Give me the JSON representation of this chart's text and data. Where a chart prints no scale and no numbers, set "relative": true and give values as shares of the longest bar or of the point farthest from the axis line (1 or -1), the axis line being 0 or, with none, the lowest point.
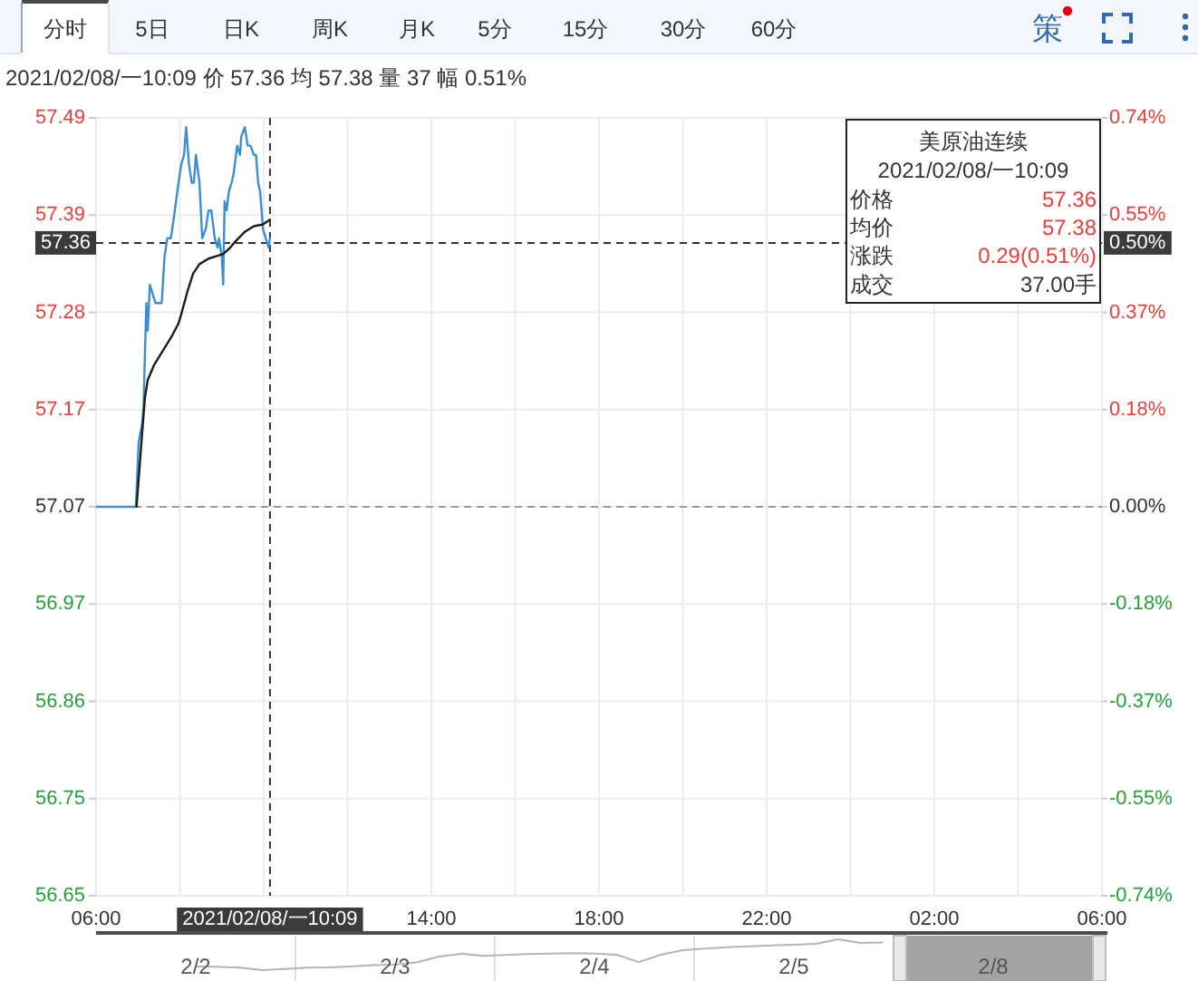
{
  "chart_data": [
    {
      "type": "line",
      "title": "美原油连续",
      "subtitle": "2021/02/08/一10:09 价 57.36 均 57.38 量 37 幅 0.51%",
      "series": [
        {
          "color": "#3a8fd3",
          "x": [
            "2021-02-08T06:00",
            "2021-02-08T06:57",
            "2021-02-08T07:01",
            "2021-02-08T07:06",
            "2021-02-08T07:08",
            "2021-02-08T07:12",
            "2021-02-08T07:14",
            "2021-02-08T07:17",
            "2021-02-08T07:21",
            "2021-02-08T07:25",
            "2021-02-08T07:34",
            "2021-02-08T07:38",
            "2021-02-08T07:42",
            "2021-02-08T07:47",
            "2021-02-08T07:51",
            "2021-02-08T07:58",
            "2021-02-08T08:02",
            "2021-02-08T08:06",
            "2021-02-08T08:09",
            "2021-02-08T08:13",
            "2021-02-08T08:17",
            "2021-02-08T08:20",
            "2021-02-08T08:23",
            "2021-02-08T08:28",
            "2021-02-08T08:32",
            "2021-02-08T08:37",
            "2021-02-08T08:41",
            "2021-02-08T08:45",
            "2021-02-08T08:50",
            "2021-02-08T08:54",
            "2021-02-08T08:56",
            "2021-02-08T09:00",
            "2021-02-08T09:02",
            "2021-02-08T09:04",
            "2021-02-08T09:07",
            "2021-02-08T09:10",
            "2021-02-08T09:14",
            "2021-02-08T09:17",
            "2021-02-08T09:22",
            "2021-02-08T09:26",
            "2021-02-08T09:28",
            "2021-02-08T09:33",
            "2021-02-08T09:37",
            "2021-02-08T09:41",
            "2021-02-08T09:46",
            "2021-02-08T09:49",
            "2021-02-08T09:52",
            "2021-02-08T09:55",
            "2021-02-08T09:59",
            "2021-02-08T10:03",
            "2021-02-08T10:07",
            "2021-02-08T10:09"
          ],
          "values": [
            57.07,
            57.07,
            57.14,
            57.16,
            57.18,
            57.29,
            57.26,
            57.31,
            57.3,
            57.29,
            57.29,
            57.34,
            57.36,
            57.36,
            57.38,
            57.42,
            57.44,
            57.45,
            57.48,
            57.44,
            57.42,
            57.42,
            57.45,
            57.42,
            57.36,
            57.37,
            57.39,
            57.39,
            57.36,
            57.35,
            57.36,
            57.34,
            57.31,
            57.4,
            57.39,
            57.41,
            57.42,
            57.43,
            57.46,
            57.45,
            57.47,
            57.48,
            57.46,
            57.46,
            57.45,
            57.45,
            57.42,
            57.41,
            57.37,
            57.36,
            57.35,
            57.36
          ]
        },
        {
          "color": "#1c1c1c",
          "x": [
            "2021-02-08T06:58",
            "2021-02-08T07:01",
            "2021-02-08T07:06",
            "2021-02-08T07:10",
            "2021-02-08T07:14",
            "2021-02-08T07:23",
            "2021-02-08T07:36",
            "2021-02-08T07:49",
            "2021-02-08T07:58",
            "2021-02-08T08:02",
            "2021-02-08T08:11",
            "2021-02-08T08:19",
            "2021-02-08T08:28",
            "2021-02-08T08:41",
            "2021-02-08T08:54",
            "2021-02-08T09:02",
            "2021-02-08T09:11",
            "2021-02-08T09:20",
            "2021-02-08T09:33",
            "2021-02-08T09:46",
            "2021-02-08T09:59",
            "2021-02-08T10:09"
          ],
          "values": [
            57.07,
            57.1,
            57.15,
            57.188,
            57.207,
            57.223,
            57.239,
            57.255,
            57.268,
            57.278,
            57.303,
            57.322,
            57.332,
            57.338,
            57.341,
            57.343,
            57.349,
            57.357,
            57.367,
            57.373,
            57.375,
            57.38
          ]
        }
      ],
      "xlim": [
        "2021-02-08T06:00",
        "2021-02-09T06:00"
      ],
      "xticks": [
        {
          "value": "2021-02-08T06:00",
          "label": "06:00"
        },
        {
          "value": "2021-02-08T08:00",
          "label": null
        },
        {
          "value": "2021-02-08T10:00",
          "label": null
        },
        {
          "value": "2021-02-08T12:00",
          "label": null
        },
        {
          "value": "2021-02-08T14:00",
          "label": "14:00"
        },
        {
          "value": "2021-02-08T16:00",
          "label": null
        },
        {
          "value": "2021-02-08T18:00",
          "label": "18:00"
        },
        {
          "value": "2021-02-08T20:00",
          "label": null
        },
        {
          "value": "2021-02-08T22:00",
          "label": "22:00"
        },
        {
          "value": "2021-02-09T00:00",
          "label": null
        },
        {
          "value": "2021-02-09T02:00",
          "label": "02:00"
        },
        {
          "value": "2021-02-09T04:00",
          "label": null
        },
        {
          "value": "2021-02-09T06:00",
          "label": "06:00"
        }
      ],
      "ylim": [
        56.65,
        57.49
      ],
      "yticks": [
        57.49,
        {
          "value": 57.385,
          "label": "57.39"
        },
        57.28,
        {
          "value": 57.175,
          "label": "57.17"
        },
        57.07,
        {
          "value": 56.965,
          "label": "56.97"
        },
        56.86,
        {
          "value": 56.755,
          "label": "56.75"
        },
        56.65
      ],
      "y2lim": [
        -0.736,
        0.736
      ],
      "y2ticks": [
        {
          "value": 0.736,
          "label": "0.74%"
        },
        {
          "value": 0.552,
          "label": "0.55%"
        },
        {
          "value": 0.368,
          "label": "0.37%"
        },
        {
          "value": 0.184,
          "label": "0.18%"
        },
        {
          "value": 0,
          "label": "0.00%"
        },
        {
          "value": -0.184,
          "label": "-0.18%"
        },
        {
          "value": -0.368,
          "label": "-0.37%"
        },
        {
          "value": -0.552,
          "label": "-0.55%"
        },
        {
          "value": -0.736,
          "label": "-0.74%"
        }
      ],
      "grid": true,
      "ref_lines": [
        {
          "axis": "y",
          "value": 57.07,
          "line_style": "dashed",
          "color": "#9a9a9a"
        },
        {
          "axis": "x",
          "value": "2021-02-08T10:09",
          "label": "2021/02/08/一10:09",
          "line_style": "dashed",
          "color": "#333333"
        },
        {
          "axis": "y",
          "value": 57.355,
          "label": "57.36",
          "line_style": "dashed",
          "color": "#333333"
        }
      ],
      "annotations": [
        "分时",
        "5日",
        "日K",
        "周K",
        "月K",
        "5分",
        "15分",
        "30分",
        "60分",
        "策",
        "2021/02/08/一10:09",
        "价格",
        "57.36",
        "均价",
        "57.38",
        "涨跌",
        "0.29(0.51%)",
        "成交",
        "37.00手",
        {
          "text": "0.50%",
          "y": 57.355
        }
      ]
    },
    {
      "type": "line",
      "relative": true,
      "color": "#b4b4b4",
      "categories": [
        null,
        null,
        null,
        null,
        "2/2",
        null,
        null,
        null,
        null,
        null,
        null,
        null,
        null,
        "2/3",
        null,
        null,
        null,
        null,
        null,
        null,
        null,
        null,
        "2/4",
        null,
        null,
        null,
        null,
        null,
        null,
        null,
        null,
        "2/5",
        null,
        null,
        null,
        null,
        null,
        null,
        null,
        null,
        "2/8",
        null,
        null,
        null,
        null
      ],
      "values": [
        null,
        null,
        null,
        null,
        0.12,
        0.11,
        0.08,
        0,
        0.04,
        0.08,
        0.09,
        0.12,
        0.16,
        0.18,
        0.26,
        0.44,
        0.53,
        0.46,
        0.49,
        0.52,
        0.54,
        0.55,
        0.54,
        0.5,
        0.26,
        0.5,
        0.65,
        0.7,
        0.74,
        0.77,
        0.8,
        0.82,
        0.85,
        1,
        0.88,
        0.9,
        null,
        null,
        null,
        null,
        null,
        null,
        null,
        null,
        null
      ],
      "grid": "x"
    }
  ]
}
